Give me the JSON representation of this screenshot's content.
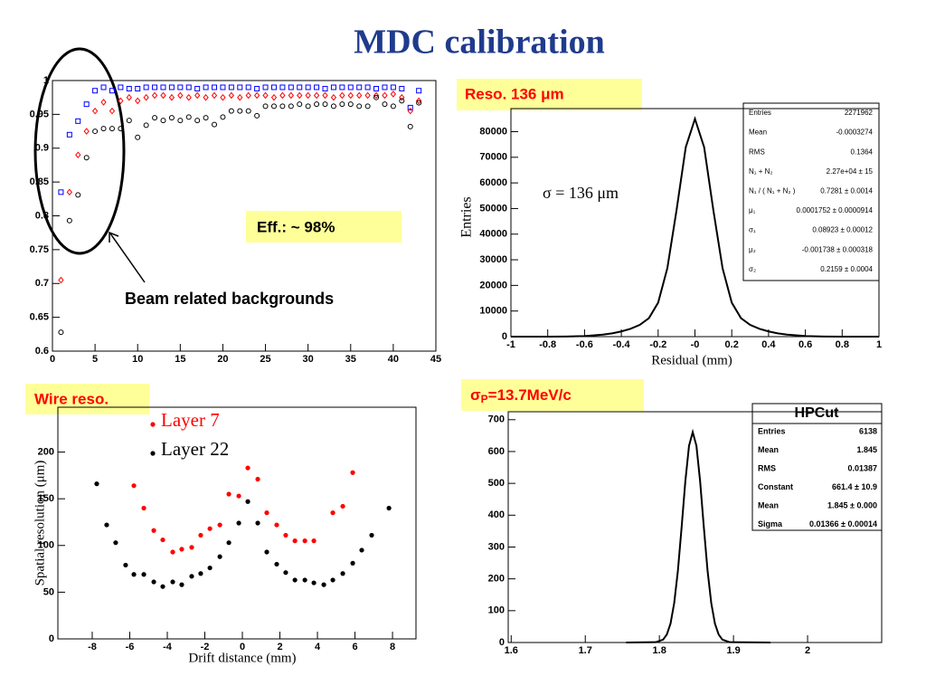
{
  "title": "MDC calibration",
  "chart_data": [
    {
      "type": "scatter",
      "annotations": [
        "Eff.: ~ 98%",
        "Beam related backgrounds"
      ],
      "x": [
        1,
        2,
        3,
        4,
        5,
        6,
        7,
        8,
        9,
        10,
        11,
        12,
        13,
        14,
        15,
        16,
        17,
        18,
        19,
        20,
        21,
        22,
        23,
        24,
        25,
        26,
        27,
        28,
        29,
        30,
        31,
        32,
        33,
        34,
        35,
        36,
        37,
        38,
        39,
        40,
        41,
        42,
        43
      ],
      "series": [
        {
          "color": "#0000ff",
          "marker": "square",
          "values": [
            0.835,
            0.92,
            0.94,
            0.965,
            0.985,
            0.99,
            0.985,
            0.99,
            0.988,
            0.988,
            0.99,
            0.99,
            0.99,
            0.99,
            0.99,
            0.99,
            0.988,
            0.99,
            0.99,
            0.99,
            0.99,
            0.99,
            0.99,
            0.988,
            0.99,
            0.99,
            0.99,
            0.99,
            0.99,
            0.99,
            0.99,
            0.988,
            0.99,
            0.99,
            0.99,
            0.99,
            0.99,
            0.988,
            0.99,
            0.99,
            0.988,
            0.96,
            0.985
          ]
        },
        {
          "color": "#ff0000",
          "marker": "diamond",
          "values": [
            0.705,
            0.835,
            0.89,
            0.925,
            0.955,
            0.968,
            0.955,
            0.97,
            0.975,
            0.97,
            0.975,
            0.978,
            0.978,
            0.975,
            0.978,
            0.975,
            0.978,
            0.975,
            0.978,
            0.975,
            0.978,
            0.975,
            0.978,
            0.978,
            0.978,
            0.975,
            0.978,
            0.978,
            0.978,
            0.978,
            0.978,
            0.978,
            0.975,
            0.978,
            0.978,
            0.978,
            0.978,
            0.978,
            0.978,
            0.98,
            0.975,
            0.955,
            0.97
          ]
        },
        {
          "color": "#000000",
          "marker": "circle",
          "values": [
            0.628,
            0.793,
            0.831,
            0.886,
            0.925,
            0.929,
            0.929,
            0.929,
            0.941,
            0.916,
            0.934,
            0.945,
            0.941,
            0.945,
            0.941,
            0.946,
            0.941,
            0.945,
            0.935,
            0.946,
            0.955,
            0.955,
            0.955,
            0.948,
            0.962,
            0.962,
            0.962,
            0.962,
            0.965,
            0.962,
            0.965,
            0.965,
            0.962,
            0.965,
            0.965,
            0.962,
            0.962,
            0.975,
            0.965,
            0.962,
            0.97,
            0.932,
            0.967
          ]
        }
      ],
      "xlim": [
        0,
        45
      ],
      "xticks": [
        0,
        5,
        10,
        15,
        20,
        25,
        30,
        35,
        40,
        45
      ],
      "ylim": [
        0.6,
        1
      ],
      "yticks": [
        0.6,
        0.65,
        0.7,
        0.75,
        0.8,
        0.85,
        0.9,
        0.95,
        1
      ]
    },
    {
      "type": "line",
      "label": "Reso. 136 μm",
      "annotation": "σ = 136 μm",
      "xlabel": "Residual (mm)",
      "ylabel": "Entries",
      "x": [
        -1,
        -0.8,
        -0.7,
        -0.6,
        -0.5,
        -0.45,
        -0.4,
        -0.35,
        -0.3,
        -0.25,
        -0.2,
        -0.15,
        -0.1,
        -0.05,
        0,
        0.05,
        0.1,
        0.15,
        0.2,
        0.25,
        0.3,
        0.35,
        0.4,
        0.45,
        0.5,
        0.6,
        0.7,
        0.8,
        1
      ],
      "series": [
        {
          "color": "#000000",
          "values": [
            0,
            10,
            60,
            240,
            780,
            1290,
            2040,
            3080,
            4570,
            7220,
            13270,
            26720,
            49370,
            73930,
            85000,
            73930,
            49370,
            26720,
            13270,
            7220,
            4570,
            3080,
            2040,
            1290,
            780,
            240,
            60,
            10,
            0
          ]
        }
      ],
      "xlim": [
        -1,
        1
      ],
      "xticks": [
        -1,
        -0.8,
        -0.6,
        -0.4,
        -0.2,
        {
          "value": 0,
          "label": "-0"
        },
        0.2,
        0.4,
        0.6,
        0.8,
        1
      ],
      "ylim": [
        0,
        89000
      ],
      "yticks": [
        0,
        10000,
        20000,
        30000,
        40000,
        50000,
        60000,
        70000,
        80000
      ],
      "stats": [
        [
          "Entries",
          "2271962"
        ],
        [
          "Mean",
          "-0.0003274"
        ],
        [
          "RMS",
          "0.1364"
        ],
        [
          "N₁ + N₂",
          "2.27e+04 ± 15"
        ],
        [
          "N₁ / ( N₁ + N₂ )",
          "0.7281 ± 0.0014"
        ],
        [
          "μ₁",
          "0.0001752 ± 0.0000914"
        ],
        [
          "σ₁",
          "0.08923 ± 0.00012"
        ],
        [
          "μ₂",
          "-0.001738 ± 0.000318"
        ],
        [
          "σ₂",
          "0.2159 ± 0.0004"
        ]
      ]
    },
    {
      "type": "scatter",
      "label": "Wire reso.",
      "xlabel": "Drift distance (mm)",
      "ylabel": "Spatial resolution (μm)",
      "series": [
        {
          "name": "Layer 7",
          "color": "#ff0000",
          "marker": "dot",
          "x": [
            -5.78,
            -5.25,
            -4.72,
            -4.24,
            -3.71,
            -3.23,
            -2.7,
            -2.22,
            -1.73,
            -1.2,
            -0.72,
            -0.19,
            0.29,
            0.82,
            1.3,
            1.83,
            2.31,
            2.8,
            3.33,
            3.81,
            4.82,
            5.35,
            5.88
          ],
          "values": [
            164,
            140,
            116,
            106,
            93,
            96,
            98,
            111,
            118,
            122,
            155,
            153,
            183,
            171,
            135,
            122,
            111,
            105,
            105,
            105,
            135,
            142,
            178
          ]
        },
        {
          "name": "Layer 22",
          "color": "#000000",
          "marker": "dot",
          "x": [
            -7.76,
            -7.23,
            -6.75,
            -6.22,
            -5.78,
            -5.25,
            -4.72,
            -4.24,
            -3.71,
            -3.23,
            -2.7,
            -2.22,
            -1.73,
            -1.2,
            -0.72,
            -0.19,
            0.29,
            0.82,
            1.3,
            1.83,
            2.31,
            2.8,
            3.33,
            3.81,
            4.34,
            4.82,
            5.35,
            5.88,
            6.36,
            6.89,
            7.81
          ],
          "values": [
            166,
            122,
            103,
            79,
            69,
            69,
            61,
            56,
            61,
            58,
            67,
            70,
            76,
            88,
            103,
            124,
            147,
            124,
            93,
            80,
            71,
            63,
            63,
            60,
            58,
            63,
            70,
            81,
            95,
            111,
            140
          ]
        }
      ],
      "xlim": [
        -9.83,
        9.25
      ],
      "xticks": [
        -8,
        -6,
        -4,
        -2,
        0,
        2,
        4,
        6,
        8
      ],
      "ylim": [
        0,
        248
      ],
      "yticks": [
        0,
        50,
        100,
        150,
        200
      ]
    },
    {
      "type": "line",
      "label": {
        "main": "σ",
        "sub": "P",
        "rest": "=13.7MeV/c"
      },
      "x": [
        1.755,
        1.795,
        1.805,
        1.81,
        1.815,
        1.82,
        1.825,
        1.83,
        1.835,
        1.84,
        1.845,
        1.85,
        1.855,
        1.86,
        1.865,
        1.87,
        1.875,
        1.88,
        1.885,
        1.895,
        1.95
      ],
      "series": [
        {
          "color": "#000000",
          "values": [
            0,
            1,
            9,
            25,
            59,
            124,
            226,
            362,
            506,
            618,
            661,
            618,
            506,
            362,
            226,
            124,
            59,
            25,
            9,
            1,
            0
          ]
        }
      ],
      "xlim": [
        1.596,
        2.1
      ],
      "xticks": [
        1.6,
        1.7,
        1.8,
        1.9,
        2
      ],
      "ylim": [
        0,
        725
      ],
      "yticks": [
        0,
        100,
        200,
        300,
        400,
        500,
        600,
        700
      ],
      "stats_title": "HPCut",
      "stats": [
        [
          "Entries",
          "6138"
        ],
        [
          "Mean",
          "1.845"
        ],
        [
          "RMS",
          "0.01387"
        ],
        [
          "Constant",
          "661.4 ± 10.9"
        ],
        [
          "Mean",
          "1.845 ± 0.000"
        ],
        [
          "Sigma",
          "0.01366 ± 0.00014"
        ]
      ]
    }
  ]
}
